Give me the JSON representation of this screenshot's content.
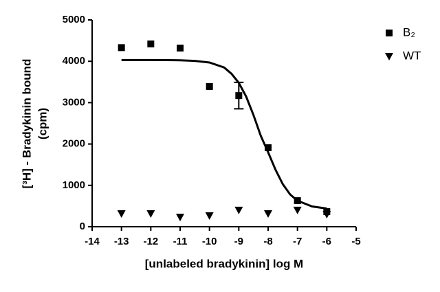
{
  "chart_data": {
    "type": "scatter",
    "x_label": "[unlabeled bradykinin] log M",
    "y_label": [
      "[³H] - Bradykinin bound",
      "(cpm)"
    ],
    "x": [
      -13,
      -12,
      -11,
      -10,
      -9,
      -8,
      -7,
      -6
    ],
    "series": [
      {
        "name": "B₂",
        "color": "#000000",
        "marker": "square",
        "values": [
          4330,
          4420,
          4320,
          3390,
          3170,
          1910,
          630,
          365
        ],
        "errors": [
          null,
          null,
          null,
          null,
          320,
          null,
          null,
          null
        ]
      },
      {
        "name": "WT",
        "color": "#000000",
        "marker": "triangle-down",
        "values": [
          315,
          315,
          230,
          265,
          400,
          315,
          400,
          300
        ]
      }
    ],
    "fit": {
      "color": "#000000",
      "x": [
        -13,
        -12.5,
        -12,
        -11.5,
        -11,
        -10.5,
        -10,
        -9.5,
        -9.25,
        -9,
        -8.75,
        -8.5,
        -8.25,
        -8,
        -7.75,
        -7.5,
        -7.25,
        -7,
        -6.5,
        -6
      ],
      "values": [
        4030,
        4030,
        4030,
        4028,
        4025,
        4010,
        3970,
        3850,
        3700,
        3480,
        3150,
        2700,
        2200,
        1800,
        1380,
        1030,
        780,
        630,
        490,
        440
      ]
    },
    "xlim": [
      -14,
      -5
    ],
    "xticks": [
      -14,
      -13,
      -12,
      -11,
      -10,
      -9,
      -8,
      -7,
      -6,
      -5
    ],
    "ylim": [
      0,
      5000
    ],
    "yticks": [
      0,
      1000,
      2000,
      3000,
      4000,
      5000
    ],
    "grid": false,
    "legend": "upper right"
  }
}
